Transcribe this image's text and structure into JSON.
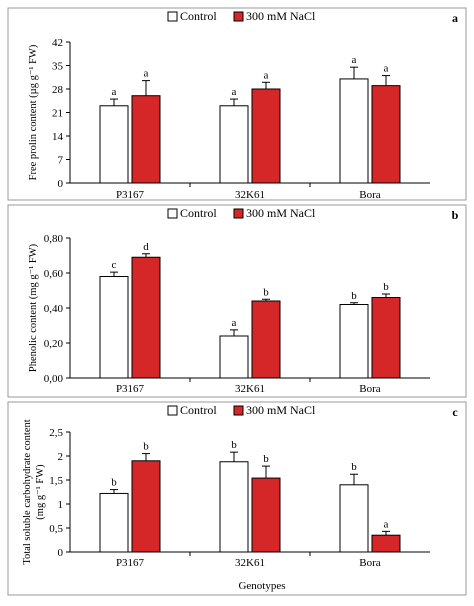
{
  "xlabel": "Genotypes",
  "colors": {
    "control": "#ffffff",
    "nacl": "#d62728",
    "outline": "#000000",
    "frame": "#9a9a9a"
  },
  "chart_data": [
    {
      "type": "bar",
      "panel_label": "a",
      "ylabel": "Free prolin content (µg g⁻¹ FW)",
      "ylim": [
        0,
        42
      ],
      "yticks": [
        "0",
        "7",
        "14",
        "21",
        "28",
        "35",
        "42"
      ],
      "categories": [
        "P3167",
        "32K61",
        "Bora"
      ],
      "legend": "top",
      "series": [
        {
          "name": "Control",
          "values": [
            23,
            23,
            31
          ],
          "errors": [
            2,
            2,
            3.5
          ],
          "letters": [
            "a",
            "a",
            "a"
          ]
        },
        {
          "name": "300 mM NaCl",
          "values": [
            26,
            28,
            29
          ],
          "errors": [
            4.5,
            2,
            3
          ],
          "letters": [
            "a",
            "a",
            "a"
          ]
        }
      ]
    },
    {
      "type": "bar",
      "panel_label": "b",
      "ylabel": "Phenolic content (mg g⁻¹ FW)",
      "ylim": [
        0,
        0.8
      ],
      "yticks": [
        "0,00",
        "0,20",
        "0,40",
        "0,60",
        "0,80"
      ],
      "categories": [
        "P3167",
        "32K61",
        "Bora"
      ],
      "legend": "top",
      "series": [
        {
          "name": "Control",
          "values": [
            0.58,
            0.24,
            0.42
          ],
          "errors": [
            0.025,
            0.035,
            0.01
          ],
          "letters": [
            "c",
            "a",
            "b"
          ]
        },
        {
          "name": "300 mM NaCl",
          "values": [
            0.69,
            0.44,
            0.46
          ],
          "errors": [
            0.02,
            0.01,
            0.02
          ],
          "letters": [
            "d",
            "b",
            "b"
          ]
        }
      ]
    },
    {
      "type": "bar",
      "panel_label": "c",
      "ylabel": [
        "Total soluble carbohydrate content",
        "(mg g⁻¹ FW)"
      ],
      "ylim": [
        0,
        2.5
      ],
      "yticks": [
        "0",
        "0,5",
        "1",
        "1,5",
        "2",
        "2,5"
      ],
      "categories": [
        "P3167",
        "32K61",
        "Bora"
      ],
      "legend": "top",
      "series": [
        {
          "name": "Control",
          "values": [
            1.22,
            1.88,
            1.4
          ],
          "errors": [
            0.08,
            0.2,
            0.22
          ],
          "letters": [
            "b",
            "b",
            "b"
          ]
        },
        {
          "name": "300 mM NaCl",
          "values": [
            1.9,
            1.54,
            0.35
          ],
          "errors": [
            0.15,
            0.25,
            0.08
          ],
          "letters": [
            "b",
            "b",
            "a"
          ]
        }
      ]
    }
  ]
}
